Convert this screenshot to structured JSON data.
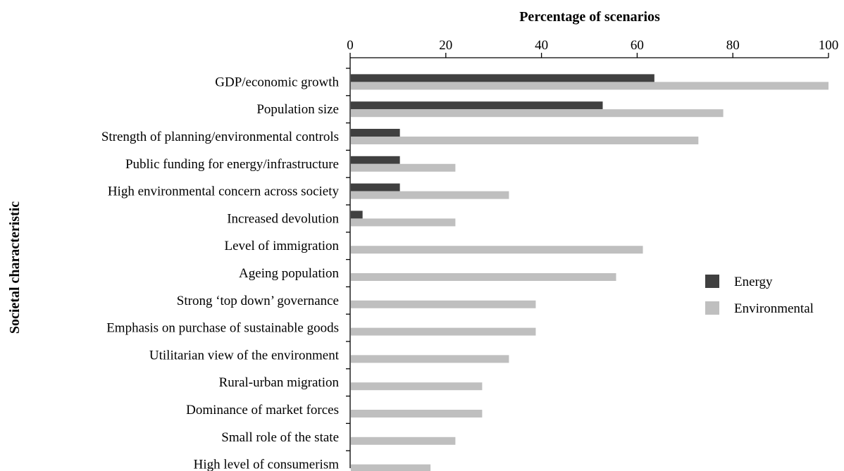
{
  "chart_data": {
    "type": "bar",
    "orientation": "horizontal",
    "xlabel": "Percentage of scenarios",
    "ylabel": "Societal characteristic",
    "xlim": [
      0,
      100
    ],
    "xticks": [
      0,
      20,
      40,
      60,
      80,
      100
    ],
    "grid": false,
    "legend_position": "right-middle",
    "categories": [
      "GDP/economic growth",
      "Population size",
      "Strength of planning/environmental controls",
      "Public funding for energy/infrastructure",
      "High environmental concern across society",
      "Increased devolution",
      "Level of immigration",
      "Ageing population",
      "Strong ‘top down’ governance",
      "Emphasis on purchase of sustainable goods",
      "Utilitarian view of the environment",
      "Rural-urban migration",
      "Dominance of market forces",
      "Small role of the state",
      "High level of consumerism"
    ],
    "series": [
      {
        "name": "Energy",
        "color": "#404040",
        "values": [
          63.6,
          52.8,
          10.4,
          10.4,
          10.4,
          2.6,
          0,
          0,
          0,
          0,
          0,
          0,
          0,
          0,
          0
        ]
      },
      {
        "name": "Environmental",
        "color": "#bfbfbf",
        "values": [
          100,
          78,
          72.8,
          22,
          33.2,
          22,
          61.2,
          55.6,
          38.8,
          38.8,
          33.2,
          27.6,
          27.6,
          22,
          16.8
        ]
      }
    ]
  }
}
